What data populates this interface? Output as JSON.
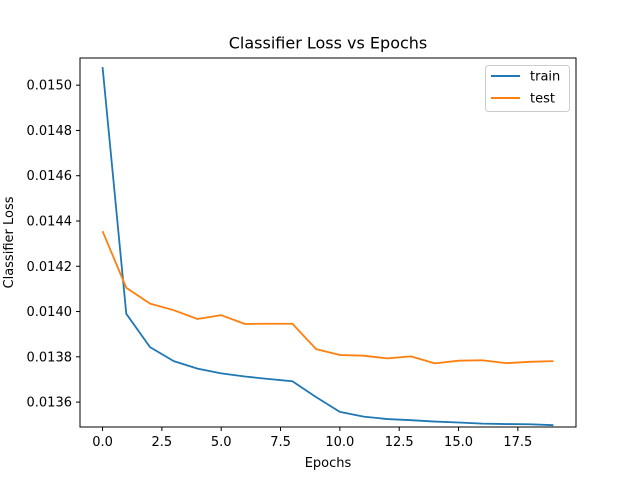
{
  "chart_data": {
    "type": "line",
    "title": "Classifier Loss vs Epochs",
    "xlabel": "Epochs",
    "ylabel": "Classifier Loss",
    "xlim": [
      -0.95,
      19.95
    ],
    "ylim": [
      0.01349,
      0.01512
    ],
    "xticks": [
      0.0,
      2.5,
      5.0,
      7.5,
      10.0,
      12.5,
      15.0,
      17.5
    ],
    "xtick_labels": [
      "0.0",
      "2.5",
      "5.0",
      "7.5",
      "10.0",
      "12.5",
      "15.0",
      "17.5"
    ],
    "yticks": [
      0.0136,
      0.0138,
      0.014,
      0.0142,
      0.0144,
      0.0146,
      0.0148,
      0.015
    ],
    "ytick_labels": [
      "0.0136",
      "0.0138",
      "0.0140",
      "0.0142",
      "0.0144",
      "0.0146",
      "0.0148",
      "0.0150"
    ],
    "grid": false,
    "legend_position": "top-right",
    "x": [
      0,
      1,
      2,
      3,
      4,
      5,
      6,
      7,
      8,
      9,
      10,
      11,
      12,
      13,
      14,
      15,
      16,
      17,
      18,
      19
    ],
    "series": [
      {
        "name": "train",
        "color": "#1f77b4",
        "values": [
          0.01508,
          0.01399,
          0.013843,
          0.013781,
          0.013748,
          0.013727,
          0.013713,
          0.013702,
          0.013692,
          0.013622,
          0.013557,
          0.013536,
          0.013525,
          0.01352,
          0.013514,
          0.01351,
          0.013505,
          0.013503,
          0.013502,
          0.013498
        ]
      },
      {
        "name": "test",
        "color": "#ff7f0e",
        "values": [
          0.014355,
          0.014105,
          0.014035,
          0.014006,
          0.013967,
          0.013984,
          0.013945,
          0.013946,
          0.013946,
          0.013834,
          0.013808,
          0.013805,
          0.013793,
          0.013802,
          0.013771,
          0.013783,
          0.013785,
          0.013772,
          0.013778,
          0.013781
        ]
      }
    ]
  }
}
